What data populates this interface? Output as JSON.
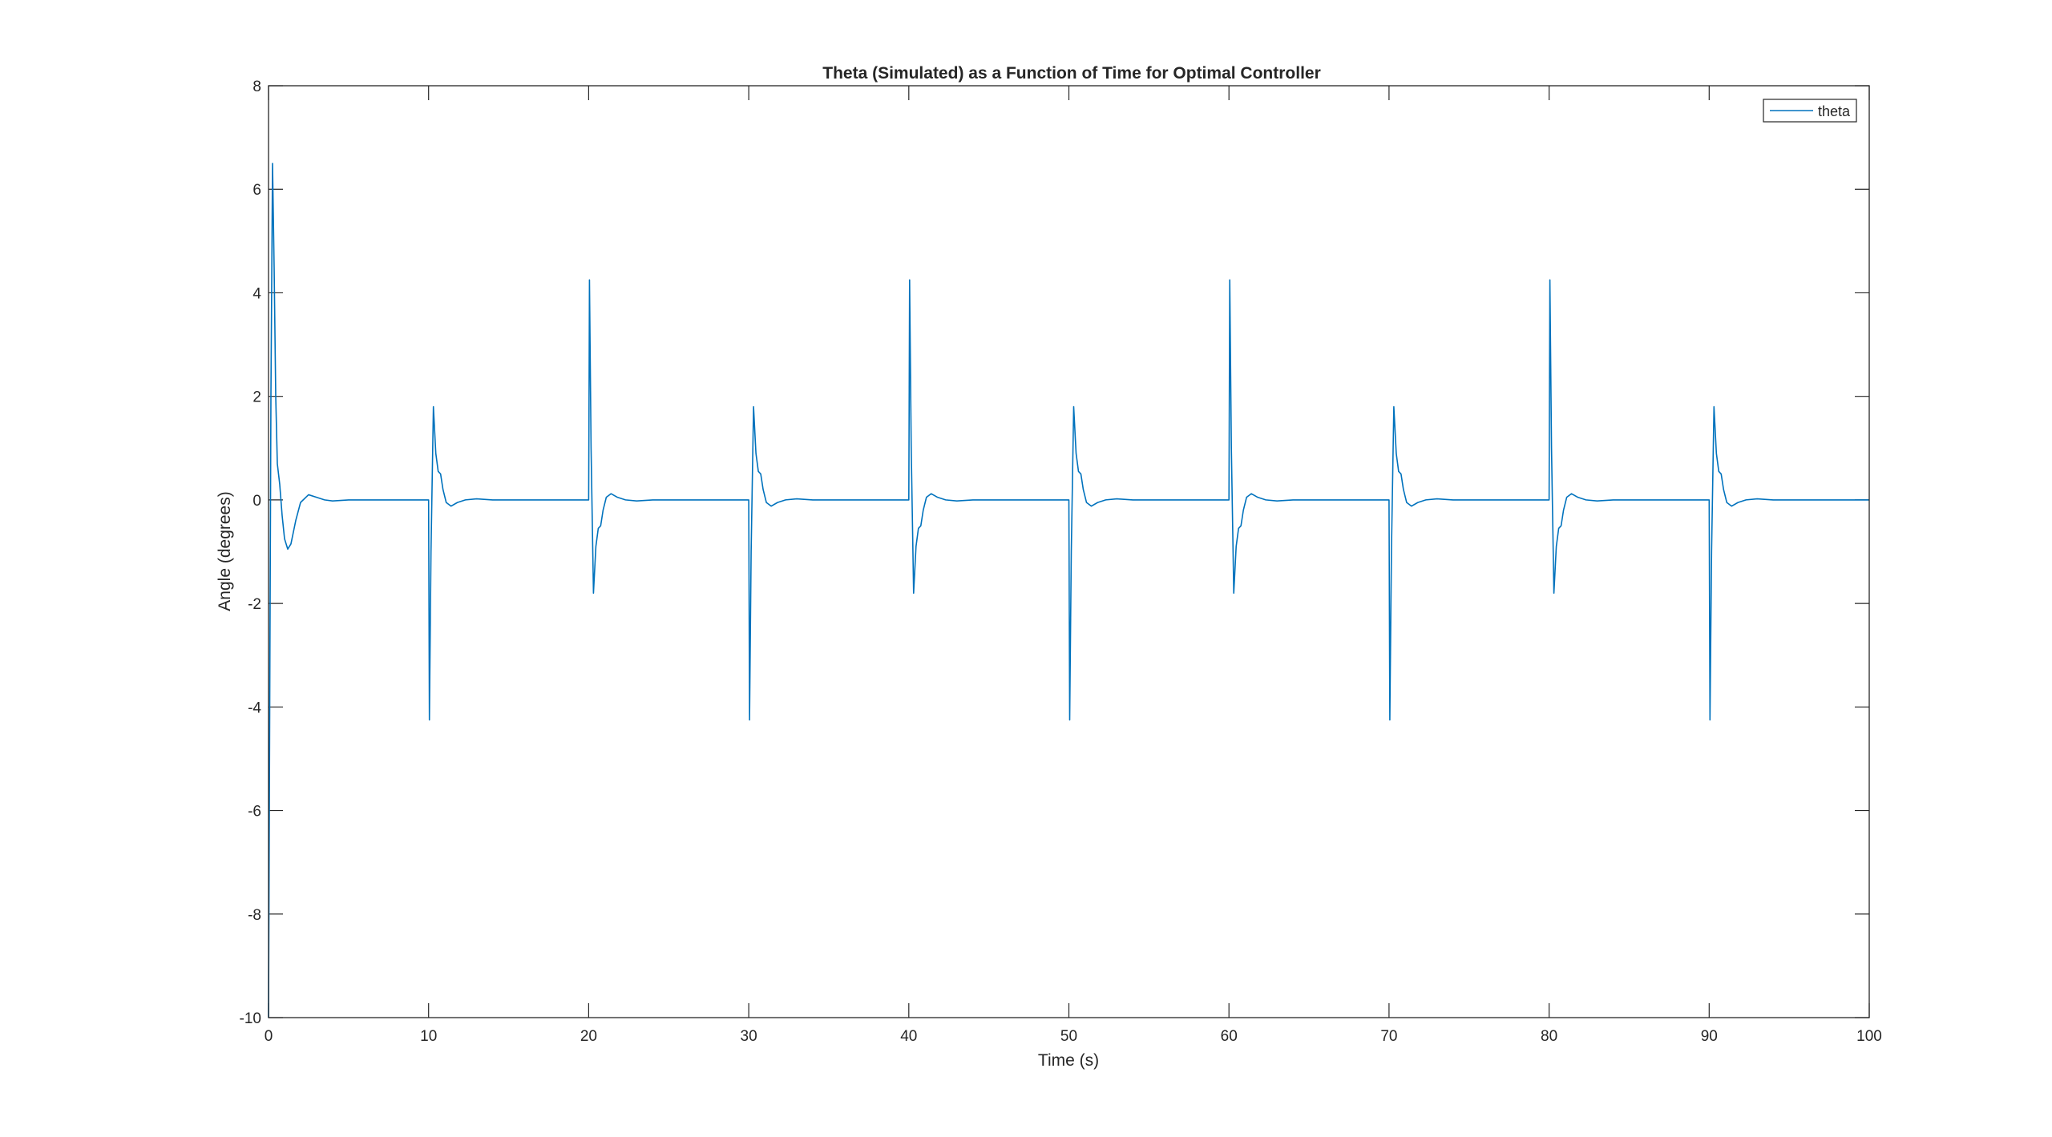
{
  "chart_data": {
    "type": "line",
    "title": "Theta (Simulated) as a Function of Time for Optimal Controller",
    "xlabel": "Time (s)",
    "ylabel": "Angle (degrees)",
    "xlim": [
      0,
      100
    ],
    "ylim": [
      -10,
      8
    ],
    "xticks": [
      0,
      10,
      20,
      30,
      40,
      50,
      60,
      70,
      80,
      90,
      100
    ],
    "yticks": [
      -10,
      -8,
      -6,
      -4,
      -2,
      0,
      2,
      4,
      6,
      8
    ],
    "xtick_labels": [
      "0",
      "10",
      "20",
      "30",
      "40",
      "50",
      "60",
      "70",
      "80",
      "90",
      "100"
    ],
    "ytick_labels": [
      "-10",
      "-8",
      "-6",
      "-4",
      "-2",
      "0",
      "2",
      "4",
      "6",
      "8"
    ],
    "grid": false,
    "legend": {
      "position": "top-right",
      "entries": [
        "theta"
      ]
    },
    "series": [
      {
        "name": "theta",
        "color": "#0072bd",
        "x": [
          0,
          0.05,
          0.15,
          0.25,
          0.35,
          0.45,
          0.55,
          0.7,
          0.85,
          1.0,
          1.2,
          1.4,
          1.7,
          2.0,
          2.5,
          3.0,
          3.5,
          4.0,
          5.0,
          6.0,
          10.0,
          10.05,
          10.15,
          10.3,
          10.45,
          10.6,
          10.75,
          10.9,
          11.1,
          11.4,
          11.8,
          12.3,
          13.0,
          14.0,
          15.0,
          20.0,
          20.05,
          20.15,
          20.3,
          20.45,
          20.6,
          20.75,
          20.9,
          21.1,
          21.4,
          21.8,
          22.3,
          23.0,
          24.0,
          25.0,
          30.0,
          30.05,
          30.15,
          30.3,
          30.45,
          30.6,
          30.75,
          30.9,
          31.1,
          31.4,
          31.8,
          32.3,
          33.0,
          34.0,
          35.0,
          40.0,
          40.05,
          40.15,
          40.3,
          40.45,
          40.6,
          40.75,
          40.9,
          41.1,
          41.4,
          41.8,
          42.3,
          43.0,
          44.0,
          45.0,
          50.0,
          50.05,
          50.15,
          50.3,
          50.45,
          50.6,
          50.75,
          50.9,
          51.1,
          51.4,
          51.8,
          52.3,
          53.0,
          54.0,
          55.0,
          60.0,
          60.05,
          60.15,
          60.3,
          60.45,
          60.6,
          60.75,
          60.9,
          61.1,
          61.4,
          61.8,
          62.3,
          63.0,
          64.0,
          65.0,
          70.0,
          70.05,
          70.15,
          70.3,
          70.45,
          70.6,
          70.75,
          70.9,
          71.1,
          71.4,
          71.8,
          72.3,
          73.0,
          74.0,
          75.0,
          80.0,
          80.05,
          80.15,
          80.3,
          80.45,
          80.6,
          80.75,
          80.9,
          81.1,
          81.4,
          81.8,
          82.3,
          83.0,
          84.0,
          85.0,
          90.0,
          90.05,
          90.15,
          90.3,
          90.45,
          90.6,
          90.75,
          90.9,
          91.1,
          91.4,
          91.8,
          92.3,
          93.0,
          94.0,
          95.0,
          100.0
        ],
        "y": [
          -10,
          -6,
          2,
          6.5,
          4.5,
          2.0,
          0.7,
          0.3,
          -0.3,
          -0.75,
          -0.95,
          -0.85,
          -0.4,
          -0.05,
          0.1,
          0.05,
          0.0,
          -0.02,
          0.0,
          0.0,
          0.0,
          -4.25,
          -1.0,
          1.8,
          0.9,
          0.55,
          0.5,
          0.2,
          -0.05,
          -0.12,
          -0.05,
          0.0,
          0.02,
          0.0,
          0.0,
          0.0,
          4.25,
          1.0,
          -1.8,
          -0.9,
          -0.55,
          -0.5,
          -0.2,
          0.05,
          0.12,
          0.05,
          0.0,
          -0.02,
          0.0,
          0.0,
          0.0,
          -4.25,
          -1.0,
          1.8,
          0.9,
          0.55,
          0.5,
          0.2,
          -0.05,
          -0.12,
          -0.05,
          0.0,
          0.02,
          0.0,
          0.0,
          0.0,
          4.25,
          1.0,
          -1.8,
          -0.9,
          -0.55,
          -0.5,
          -0.2,
          0.05,
          0.12,
          0.05,
          0.0,
          -0.02,
          0.0,
          0.0,
          0.0,
          -4.25,
          -1.0,
          1.8,
          0.9,
          0.55,
          0.5,
          0.2,
          -0.05,
          -0.12,
          -0.05,
          0.0,
          0.02,
          0.0,
          0.0,
          0.0,
          4.25,
          1.0,
          -1.8,
          -0.9,
          -0.55,
          -0.5,
          -0.2,
          0.05,
          0.12,
          0.05,
          0.0,
          -0.02,
          0.0,
          0.0,
          0.0,
          -4.25,
          -1.0,
          1.8,
          0.9,
          0.55,
          0.5,
          0.2,
          -0.05,
          -0.12,
          -0.05,
          0.0,
          0.02,
          0.0,
          0.0,
          0.0,
          4.25,
          1.0,
          -1.8,
          -0.9,
          -0.55,
          -0.5,
          -0.2,
          0.05,
          0.12,
          0.05,
          0.0,
          -0.02,
          0.0,
          0.0,
          0.0,
          -4.25,
          -1.0,
          1.8,
          0.9,
          0.55,
          0.5,
          0.2,
          -0.05,
          -0.12,
          -0.05,
          0.0,
          0.02,
          0.0,
          0.0,
          0.0
        ]
      }
    ]
  }
}
